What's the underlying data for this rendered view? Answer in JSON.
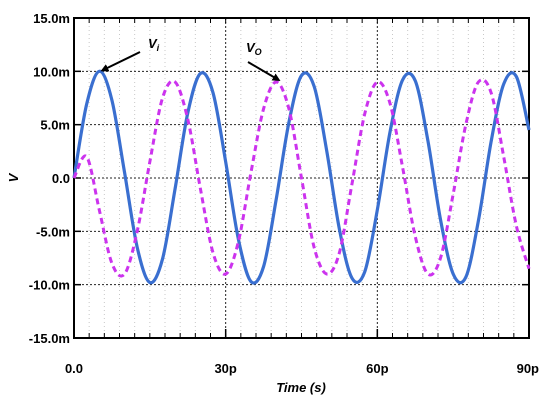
{
  "chart_data": {
    "type": "line",
    "xlabel": "Time (s)",
    "ylabel": "V",
    "xlim": [
      0,
      90
    ],
    "ylim": [
      -15,
      15
    ],
    "x_unit": "ps",
    "y_unit": "mV",
    "x_ticks": [
      {
        "value": 0,
        "label": "0.0"
      },
      {
        "value": 30,
        "label": "30p"
      },
      {
        "value": 60,
        "label": "60p"
      },
      {
        "value": 90,
        "label": "90p"
      }
    ],
    "y_ticks": [
      {
        "value": 15,
        "label": "15.0m"
      },
      {
        "value": 10,
        "label": "10.0m"
      },
      {
        "value": 5,
        "label": "5.0m"
      },
      {
        "value": 0,
        "label": "0.0"
      },
      {
        "value": -5,
        "label": "-5.0m"
      },
      {
        "value": -10,
        "label": "-10.0m"
      },
      {
        "value": -15,
        "label": "-15.0m"
      }
    ],
    "grid": true,
    "series": [
      {
        "name": "V_i",
        "style": "solid",
        "color": "#3a6fd0",
        "x": [
          0,
          2.5,
          5,
          7.5,
          10,
          12.5,
          15,
          17.5,
          20,
          22.5,
          25,
          27.5,
          30,
          32.5,
          35,
          37.5,
          40,
          42.5,
          45,
          47.5,
          50,
          52.5,
          55,
          57.5,
          60,
          62.5,
          65,
          67.5,
          70,
          72.5,
          75,
          77.5,
          80,
          82.5,
          85,
          87.5,
          90
        ],
        "y": [
          0.0,
          6.9,
          10.0,
          7.3,
          0.5,
          -6.5,
          -9.8,
          -7.6,
          -1.0,
          6.1,
          9.8,
          8.0,
          1.5,
          -5.7,
          -9.7,
          -8.3,
          -2.0,
          5.2,
          9.6,
          8.6,
          2.5,
          -4.8,
          -9.4,
          -8.8,
          -3.0,
          4.3,
          9.2,
          9.1,
          3.5,
          -3.9,
          -9.0,
          -9.3,
          -4.0,
          3.4,
          8.8,
          9.5,
          4.5
        ]
      },
      {
        "name": "V_o",
        "style": "dashed",
        "color": "#cc33ee",
        "x": [
          0,
          2.5,
          5,
          7.5,
          10,
          12.5,
          15,
          17.5,
          20,
          22.5,
          25,
          27.5,
          30,
          32.5,
          35,
          37.5,
          40,
          42.5,
          45,
          47.5,
          50,
          52.5,
          55,
          57.5,
          60,
          62.5,
          65,
          67.5,
          70,
          72.5,
          75,
          77.5,
          80,
          82.5,
          85,
          87.5,
          90
        ],
        "y": [
          0.0,
          2.0,
          -3.0,
          -8.0,
          -9.0,
          -5.0,
          1.5,
          7.5,
          9.0,
          5.5,
          -1.0,
          -7.0,
          -9.0,
          -6.0,
          0.5,
          6.5,
          9.0,
          6.5,
          0.0,
          -6.5,
          -9.0,
          -7.0,
          -0.5,
          6.0,
          9.0,
          7.0,
          1.0,
          -5.5,
          -9.0,
          -7.5,
          -1.5,
          5.0,
          9.0,
          8.0,
          2.0,
          -4.5,
          -8.5
        ]
      }
    ],
    "annotations": [
      {
        "id": "vi",
        "main": "V",
        "sub": "i",
        "target_x": 5.6,
        "target_y": 9.9
      },
      {
        "id": "vo",
        "main": "V",
        "sub": "O",
        "target_x": 40.5,
        "target_y": 9.0
      }
    ]
  }
}
